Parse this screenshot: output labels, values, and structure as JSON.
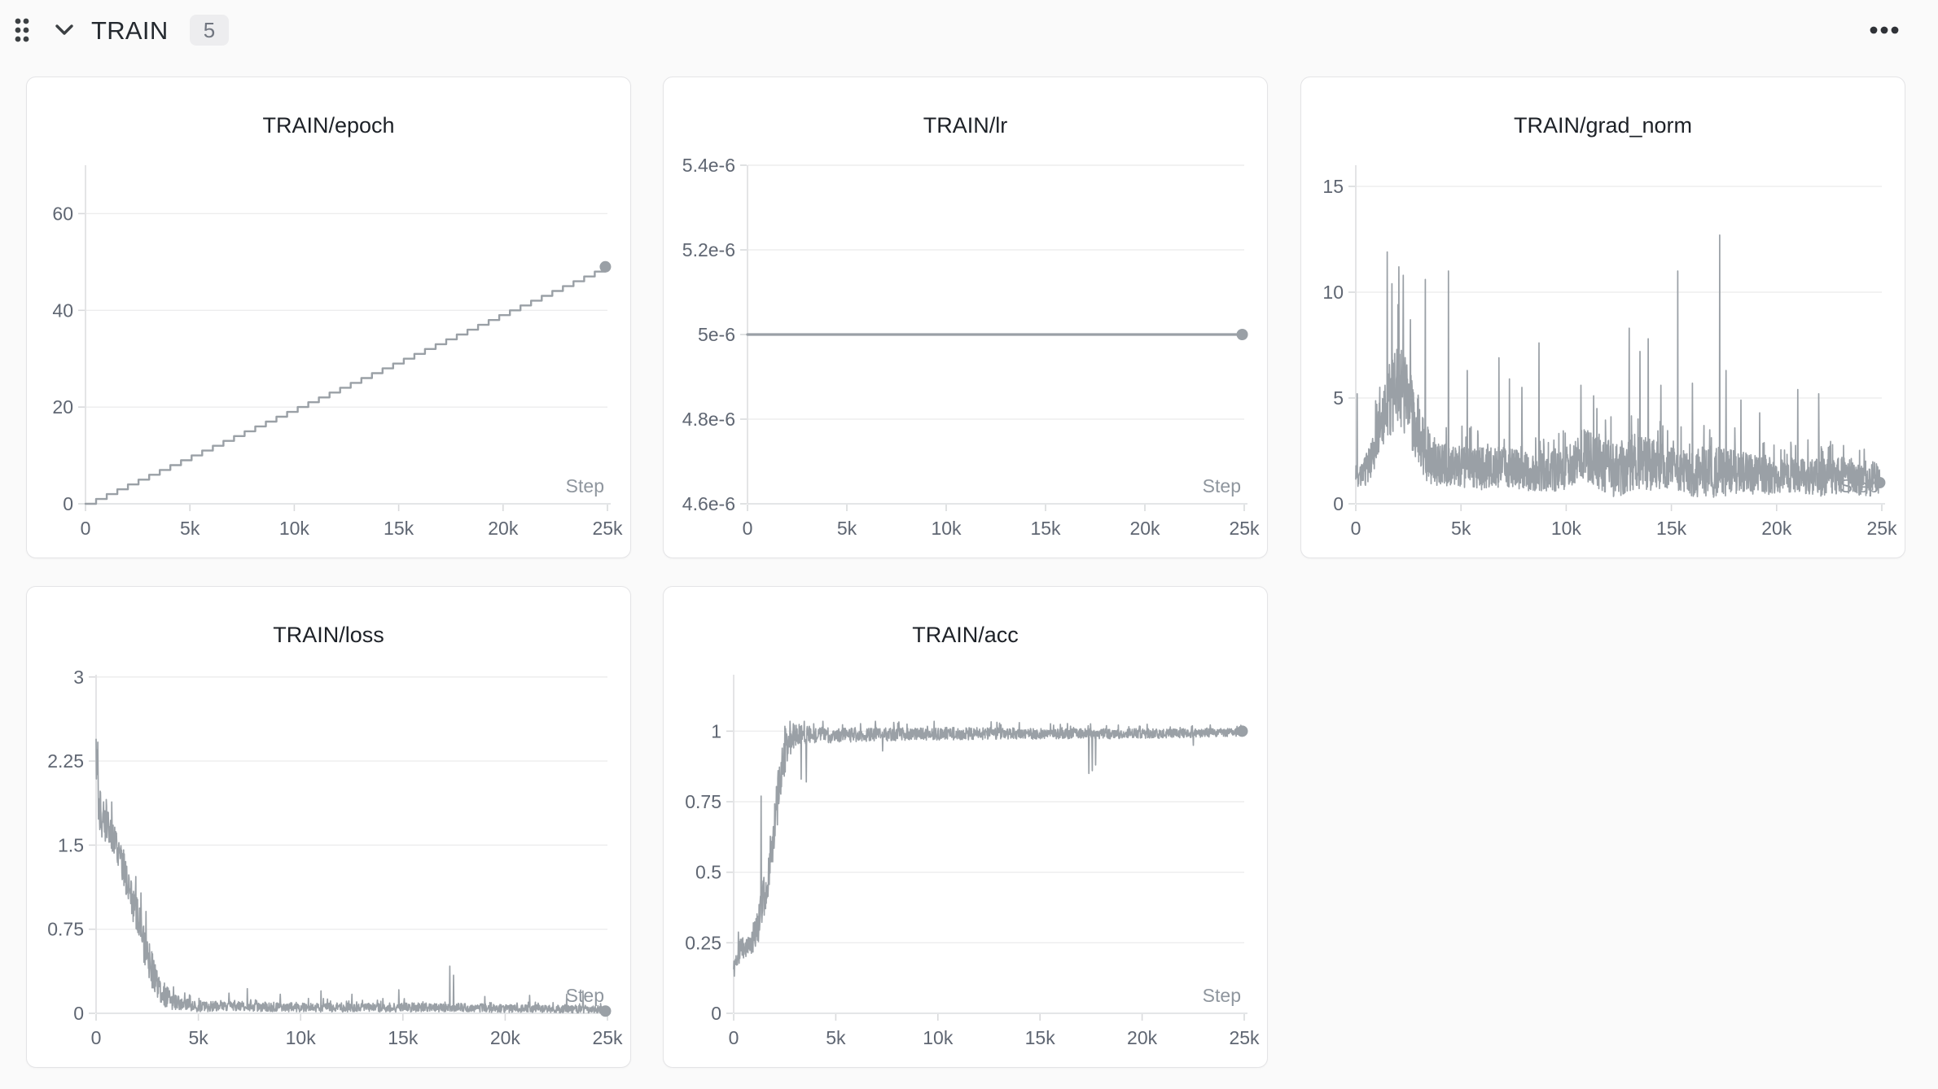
{
  "header": {
    "title": "TRAIN",
    "badge_count": "5",
    "icons": {
      "drag_handle": "grip-dots",
      "collapse": "chevron-down",
      "menu": "ellipsis"
    }
  },
  "colors": {
    "line": "#9aa0a6",
    "grid": "#ededee",
    "axis": "#e1e2e4",
    "tick_mark": "#d9dadc",
    "tick_label": "#5f6672",
    "step_label": "#8f969e",
    "title": "#1d2127",
    "header_icon": "#3c4043",
    "page_bg": "#fafafa",
    "card_bg": "#ffffff",
    "card_border": "#e4e4e6",
    "badge_bg": "#ededef",
    "badge_text": "#717680"
  },
  "chart_data": [
    {
      "type": "line",
      "title": "TRAIN/epoch",
      "xlabel": "Step",
      "xlim": [
        0,
        25000
      ],
      "ylim": [
        0,
        70
      ],
      "x_ticks": [
        {
          "v": 0,
          "label": "0"
        },
        {
          "v": 5000,
          "label": "5k"
        },
        {
          "v": 10000,
          "label": "10k"
        },
        {
          "v": 15000,
          "label": "15k"
        },
        {
          "v": 20000,
          "label": "20k"
        },
        {
          "v": 25000,
          "label": "25k"
        }
      ],
      "y_ticks": [
        {
          "v": 0,
          "label": "0"
        },
        {
          "v": 20,
          "label": "20"
        },
        {
          "v": 40,
          "label": "40"
        },
        {
          "v": 60,
          "label": "60"
        }
      ],
      "grid": true,
      "legend": "none",
      "series": {
        "kind": "staircase",
        "x_end": 24900,
        "epochs": 49,
        "y_start": 0,
        "y_end": 49
      },
      "end_point": [
        24900,
        49
      ]
    },
    {
      "type": "line",
      "title": "TRAIN/lr",
      "xlabel": "Step",
      "xlim": [
        0,
        25000
      ],
      "ylim": [
        4.6e-06,
        5.4e-06
      ],
      "x_ticks": [
        {
          "v": 0,
          "label": "0"
        },
        {
          "v": 5000,
          "label": "5k"
        },
        {
          "v": 10000,
          "label": "10k"
        },
        {
          "v": 15000,
          "label": "15k"
        },
        {
          "v": 20000,
          "label": "20k"
        },
        {
          "v": 25000,
          "label": "25k"
        }
      ],
      "y_ticks": [
        {
          "v": 4.6e-06,
          "label": "4.6e-6"
        },
        {
          "v": 4.8e-06,
          "label": "4.8e-6"
        },
        {
          "v": 5e-06,
          "label": "5e-6"
        },
        {
          "v": 5.2e-06,
          "label": "5.2e-6"
        },
        {
          "v": 5.4e-06,
          "label": "5.4e-6"
        }
      ],
      "grid": true,
      "legend": "none",
      "series": {
        "kind": "constant",
        "x_end": 24900,
        "value": 5e-06
      },
      "end_point": [
        24900,
        5e-06
      ]
    },
    {
      "type": "line",
      "title": "TRAIN/grad_norm",
      "xlabel": "Step",
      "xlim": [
        0,
        25000
      ],
      "ylim": [
        0,
        16
      ],
      "x_ticks": [
        {
          "v": 0,
          "label": "0"
        },
        {
          "v": 5000,
          "label": "5k"
        },
        {
          "v": 10000,
          "label": "10k"
        },
        {
          "v": 15000,
          "label": "15k"
        },
        {
          "v": 20000,
          "label": "20k"
        },
        {
          "v": 25000,
          "label": "25k"
        }
      ],
      "y_ticks": [
        {
          "v": 0,
          "label": "0"
        },
        {
          "v": 5,
          "label": "5"
        },
        {
          "v": 10,
          "label": "10"
        },
        {
          "v": 15,
          "label": "15"
        }
      ],
      "grid": true,
      "legend": "none",
      "series": {
        "kind": "noisy",
        "trend": [
          [
            0,
            1.1
          ],
          [
            400,
            1.4
          ],
          [
            800,
            2.2
          ],
          [
            1200,
            3.6
          ],
          [
            1600,
            4.8
          ],
          [
            2000,
            5.6
          ],
          [
            2400,
            5.0
          ],
          [
            2800,
            3.8
          ],
          [
            3200,
            2.6
          ],
          [
            3600,
            2.0
          ],
          [
            4000,
            1.8
          ],
          [
            5000,
            1.7
          ],
          [
            6000,
            1.6
          ],
          [
            7000,
            1.7
          ],
          [
            8000,
            1.5
          ],
          [
            9000,
            1.4
          ],
          [
            10000,
            1.6
          ],
          [
            10800,
            2.3
          ],
          [
            11600,
            1.8
          ],
          [
            12400,
            1.5
          ],
          [
            13200,
            1.9
          ],
          [
            14000,
            1.8
          ],
          [
            15000,
            1.6
          ],
          [
            16000,
            1.4
          ],
          [
            17000,
            1.5
          ],
          [
            18000,
            1.4
          ],
          [
            19000,
            1.3
          ],
          [
            20000,
            1.2
          ],
          [
            21000,
            1.3
          ],
          [
            22000,
            1.2
          ],
          [
            23000,
            1.3
          ],
          [
            24000,
            1.2
          ],
          [
            24900,
            1.1
          ]
        ],
        "noise": [
          [
            0,
            0.5
          ],
          [
            800,
            1.0
          ],
          [
            1600,
            2.0
          ],
          [
            2400,
            2.2
          ],
          [
            3200,
            1.6
          ],
          [
            4000,
            1.1
          ],
          [
            6000,
            1.1
          ],
          [
            8000,
            1.0
          ],
          [
            10000,
            1.1
          ],
          [
            11000,
            1.4
          ],
          [
            13000,
            1.5
          ],
          [
            14000,
            1.4
          ],
          [
            15000,
            1.1
          ],
          [
            17000,
            1.4
          ],
          [
            18000,
            1.2
          ],
          [
            20000,
            0.9
          ],
          [
            22000,
            1.0
          ],
          [
            24900,
            0.9
          ]
        ],
        "spikes": [
          [
            60,
            5.2
          ],
          [
            1500,
            11.9
          ],
          [
            1720,
            10.4
          ],
          [
            2050,
            11.2
          ],
          [
            2250,
            10.8
          ],
          [
            2600,
            8.7
          ],
          [
            3300,
            10.6
          ],
          [
            4400,
            11.0
          ],
          [
            5300,
            6.3
          ],
          [
            6800,
            6.9
          ],
          [
            7300,
            5.9
          ],
          [
            7900,
            5.5
          ],
          [
            8700,
            7.6
          ],
          [
            10700,
            5.6
          ],
          [
            11300,
            5.1
          ],
          [
            13000,
            8.3
          ],
          [
            13500,
            7.2
          ],
          [
            13900,
            7.8
          ],
          [
            14500,
            5.6
          ],
          [
            15300,
            11.0
          ],
          [
            16000,
            5.7
          ],
          [
            17300,
            12.7
          ],
          [
            17600,
            6.3
          ],
          [
            18300,
            4.9
          ],
          [
            19200,
            4.3
          ],
          [
            21000,
            5.4
          ],
          [
            22000,
            5.2
          ],
          [
            24900,
            5.6
          ]
        ]
      },
      "end_point": [
        24900,
        1.0
      ]
    },
    {
      "type": "line",
      "title": "TRAIN/loss",
      "xlabel": "Step",
      "xlim": [
        0,
        25000
      ],
      "ylim": [
        0,
        3.02
      ],
      "x_ticks": [
        {
          "v": 0,
          "label": "0"
        },
        {
          "v": 5000,
          "label": "5k"
        },
        {
          "v": 10000,
          "label": "10k"
        },
        {
          "v": 15000,
          "label": "15k"
        },
        {
          "v": 20000,
          "label": "20k"
        },
        {
          "v": 25000,
          "label": "25k"
        }
      ],
      "y_ticks": [
        {
          "v": 0,
          "label": "0"
        },
        {
          "v": 0.75,
          "label": "0.75"
        },
        {
          "v": 1.5,
          "label": "1.5"
        },
        {
          "v": 2.25,
          "label": "2.25"
        },
        {
          "v": 3,
          "label": "3"
        }
      ],
      "grid": true,
      "legend": "none",
      "series": {
        "kind": "noisy",
        "trend": [
          [
            0,
            2.3
          ],
          [
            150,
            1.8
          ],
          [
            400,
            1.7
          ],
          [
            700,
            1.62
          ],
          [
            1000,
            1.5
          ],
          [
            1300,
            1.32
          ],
          [
            1600,
            1.12
          ],
          [
            1900,
            0.92
          ],
          [
            2200,
            0.72
          ],
          [
            2500,
            0.52
          ],
          [
            2800,
            0.34
          ],
          [
            3100,
            0.22
          ],
          [
            3400,
            0.15
          ],
          [
            3700,
            0.11
          ],
          [
            4200,
            0.08
          ],
          [
            5000,
            0.06
          ],
          [
            7000,
            0.06
          ],
          [
            10000,
            0.05
          ],
          [
            13000,
            0.05
          ],
          [
            16000,
            0.05
          ],
          [
            18000,
            0.05
          ],
          [
            20000,
            0.04
          ],
          [
            22000,
            0.04
          ],
          [
            24900,
            0.03
          ]
        ],
        "noise": [
          [
            0,
            0.22
          ],
          [
            1000,
            0.18
          ],
          [
            2000,
            0.22
          ],
          [
            2800,
            0.18
          ],
          [
            3500,
            0.1
          ],
          [
            4200,
            0.06
          ],
          [
            6000,
            0.05
          ],
          [
            10000,
            0.045
          ],
          [
            15000,
            0.045
          ],
          [
            20000,
            0.04
          ],
          [
            24900,
            0.04
          ]
        ],
        "spikes": [
          [
            30,
            2.35
          ],
          [
            6500,
            0.18
          ],
          [
            7400,
            0.22
          ],
          [
            9000,
            0.17
          ],
          [
            11000,
            0.2
          ],
          [
            12500,
            0.17
          ],
          [
            14800,
            0.21
          ],
          [
            17300,
            0.42
          ],
          [
            17480,
            0.34
          ],
          [
            19000,
            0.15
          ],
          [
            21200,
            0.16
          ],
          [
            23000,
            0.17
          ],
          [
            23800,
            0.2
          ]
        ]
      },
      "end_point": [
        24900,
        0.02
      ]
    },
    {
      "type": "line",
      "title": "TRAIN/acc",
      "xlabel": "Step",
      "xlim": [
        0,
        25000
      ],
      "ylim": [
        0,
        1.2
      ],
      "x_ticks": [
        {
          "v": 0,
          "label": "0"
        },
        {
          "v": 5000,
          "label": "5k"
        },
        {
          "v": 10000,
          "label": "10k"
        },
        {
          "v": 15000,
          "label": "15k"
        },
        {
          "v": 20000,
          "label": "20k"
        },
        {
          "v": 25000,
          "label": "25k"
        }
      ],
      "y_ticks": [
        {
          "v": 0,
          "label": "0"
        },
        {
          "v": 0.25,
          "label": "0.25"
        },
        {
          "v": 0.5,
          "label": "0.5"
        },
        {
          "v": 0.75,
          "label": "0.75"
        },
        {
          "v": 1,
          "label": "1"
        }
      ],
      "grid": true,
      "legend": "none",
      "series": {
        "kind": "noisy",
        "trend": [
          [
            0,
            0.16
          ],
          [
            200,
            0.21
          ],
          [
            500,
            0.23
          ],
          [
            800,
            0.24
          ],
          [
            1100,
            0.28
          ],
          [
            1400,
            0.37
          ],
          [
            1700,
            0.5
          ],
          [
            2000,
            0.66
          ],
          [
            2300,
            0.84
          ],
          [
            2600,
            0.94
          ],
          [
            2900,
            0.975
          ],
          [
            3200,
            0.985
          ],
          [
            4000,
            0.985
          ],
          [
            6000,
            0.985
          ],
          [
            10000,
            0.99
          ],
          [
            15000,
            0.99
          ],
          [
            20000,
            0.99
          ],
          [
            24900,
            0.995
          ]
        ],
        "noise": [
          [
            0,
            0.05
          ],
          [
            800,
            0.04
          ],
          [
            1400,
            0.09
          ],
          [
            2200,
            0.1
          ],
          [
            2800,
            0.05
          ],
          [
            3500,
            0.035
          ],
          [
            5000,
            0.03
          ],
          [
            8000,
            0.025
          ],
          [
            12000,
            0.025
          ],
          [
            16000,
            0.02
          ],
          [
            20000,
            0.02
          ],
          [
            24900,
            0.015
          ]
        ],
        "spikes": [
          [
            1350,
            0.77
          ],
          [
            3300,
            0.83
          ],
          [
            3550,
            0.82
          ],
          [
            7300,
            0.93
          ],
          [
            17400,
            0.85
          ],
          [
            17560,
            0.86
          ],
          [
            17720,
            0.88
          ],
          [
            22500,
            0.95
          ],
          [
            24900,
            1.0
          ]
        ]
      },
      "end_point": [
        24900,
        1.0
      ]
    }
  ]
}
